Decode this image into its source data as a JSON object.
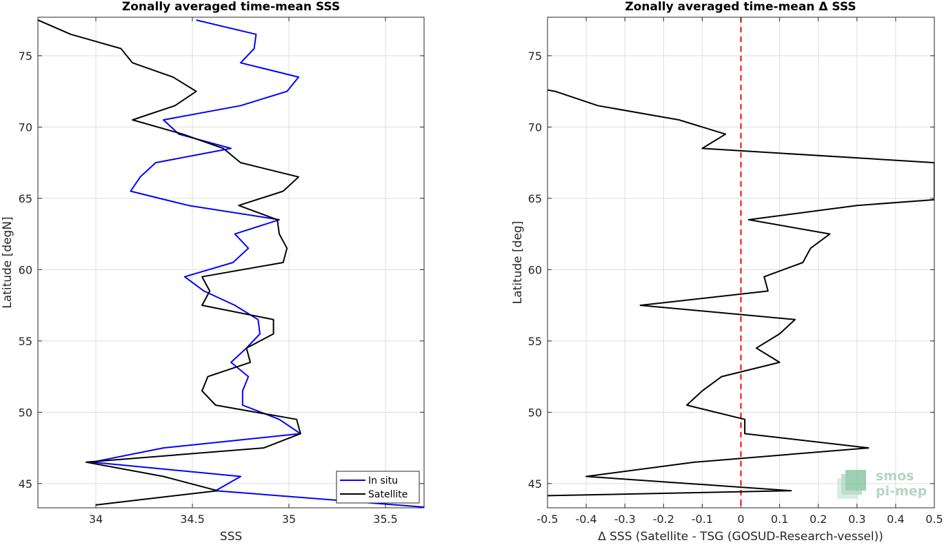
{
  "left_panel": {
    "title": "Zonally averaged time-mean SSS",
    "xlabel": "SSS",
    "ylabel": "Latitude [degN]"
  },
  "right_panel": {
    "title": "Zonally averaged time-mean Δ SSS",
    "xlabel": "Δ SSS (Satellite - TSG (GOSUD-Research-vessel))",
    "ylabel": "Latitude [deg]"
  },
  "legend": {
    "in_situ": "In situ",
    "satellite": "Satellite"
  },
  "logo": {
    "line1": "smos",
    "line2": "pi-mep"
  },
  "colors": {
    "in_situ": "#0000ff",
    "satellite": "#000000",
    "zero_line": "#ff0000",
    "grid": "#dedede",
    "logo": "#7fbf9a"
  },
  "chart_data": [
    {
      "type": "line",
      "title": "Zonally averaged time-mean SSS",
      "xlabel": "SSS",
      "ylabel": "Latitude [degN]",
      "xlim": [
        33.7,
        35.7
      ],
      "ylim": [
        43.3,
        77.7
      ],
      "xticks": [
        34,
        34.5,
        35,
        35.5
      ],
      "xtick_labels": [
        "34",
        "34.5",
        "35",
        "35.5"
      ],
      "yticks": [
        45,
        50,
        55,
        60,
        65,
        70,
        75
      ],
      "ytick_labels": [
        "45",
        "50",
        "55",
        "60",
        "65",
        "70",
        "75"
      ],
      "grid": true,
      "legend_position": "bottom-right",
      "series": [
        {
          "name": "In situ",
          "color": "#0000ff",
          "points": [
            [
              34.52,
              77.5
            ],
            [
              34.83,
              76.5
            ],
            [
              34.82,
              75.5
            ],
            [
              34.75,
              74.5
            ],
            [
              35.05,
              73.5
            ],
            [
              34.99,
              72.5
            ],
            [
              34.75,
              71.5
            ],
            [
              34.35,
              70.5
            ],
            [
              34.43,
              69.5
            ],
            [
              34.7,
              68.5
            ],
            [
              34.31,
              67.5
            ],
            [
              34.23,
              66.5
            ],
            [
              34.18,
              65.5
            ],
            [
              34.48,
              64.5
            ],
            [
              34.95,
              63.5
            ],
            [
              34.72,
              62.5
            ],
            [
              34.79,
              61.5
            ],
            [
              34.71,
              60.5
            ],
            [
              34.46,
              59.5
            ],
            [
              34.56,
              58.5
            ],
            [
              34.72,
              57.5
            ],
            [
              34.84,
              56.5
            ],
            [
              34.85,
              55.5
            ],
            [
              34.78,
              54.5
            ],
            [
              34.7,
              53.5
            ],
            [
              34.79,
              52.5
            ],
            [
              34.76,
              51.5
            ],
            [
              34.76,
              50.5
            ],
            [
              34.95,
              49.5
            ],
            [
              35.06,
              48.5
            ],
            [
              34.35,
              47.5
            ],
            [
              33.98,
              46.5
            ],
            [
              34.75,
              45.5
            ],
            [
              34.62,
              44.5
            ],
            [
              35.7,
              43.35
            ]
          ]
        },
        {
          "name": "Satellite",
          "color": "#000000",
          "points": [
            [
              33.7,
              77.5
            ],
            [
              33.87,
              76.5
            ],
            [
              34.13,
              75.5
            ],
            [
              34.19,
              74.5
            ],
            [
              34.4,
              73.5
            ],
            [
              34.52,
              72.5
            ],
            [
              34.41,
              71.5
            ],
            [
              34.19,
              70.5
            ],
            [
              34.45,
              69.5
            ],
            [
              34.66,
              68.5
            ],
            [
              34.75,
              67.5
            ],
            [
              35.05,
              66.5
            ],
            [
              34.97,
              65.5
            ],
            [
              34.74,
              64.5
            ],
            [
              34.94,
              63.5
            ],
            [
              34.95,
              62.5
            ],
            [
              34.99,
              61.5
            ],
            [
              34.97,
              60.5
            ],
            [
              34.55,
              59.5
            ],
            [
              34.59,
              58.5
            ],
            [
              34.55,
              57.5
            ],
            [
              34.92,
              56.5
            ],
            [
              34.92,
              55.5
            ],
            [
              34.78,
              54.5
            ],
            [
              34.8,
              53.5
            ],
            [
              34.58,
              52.5
            ],
            [
              34.55,
              51.5
            ],
            [
              34.62,
              50.5
            ],
            [
              35.04,
              49.5
            ],
            [
              35.06,
              48.5
            ],
            [
              34.87,
              47.5
            ],
            [
              33.95,
              46.5
            ],
            [
              34.35,
              45.5
            ],
            [
              34.63,
              44.5
            ],
            [
              34.0,
              43.5
            ]
          ]
        }
      ]
    },
    {
      "type": "line",
      "title": "Zonally averaged time-mean Δ SSS",
      "xlabel": "Δ SSS (Satellite - TSG (GOSUD-Research-vessel))",
      "ylabel": "Latitude [deg]",
      "xlim": [
        -0.5,
        0.5
      ],
      "ylim": [
        43.3,
        77.7
      ],
      "xticks": [
        -0.5,
        -0.4,
        -0.3,
        -0.2,
        -0.1,
        0,
        0.1,
        0.2,
        0.3,
        0.4,
        0.5
      ],
      "xtick_labels": [
        "-0.5",
        "-0.4",
        "-0.3",
        "-0.2",
        "-0.1",
        "0",
        "0.1",
        "0.2",
        "0.3",
        "0.4",
        "0.5"
      ],
      "yticks": [
        45,
        50,
        55,
        60,
        65,
        70,
        75
      ],
      "ytick_labels": [
        "45",
        "50",
        "55",
        "60",
        "65",
        "70",
        "75"
      ],
      "grid": true,
      "reference_line": {
        "x": 0,
        "style": "dashed",
        "color": "#ff0000"
      },
      "series": [
        {
          "color": "#000000",
          "points": [
            [
              -0.5,
              72.6
            ],
            [
              -0.48,
              72.5
            ],
            [
              -0.37,
              71.5
            ],
            [
              -0.16,
              70.5
            ],
            [
              -0.04,
              69.5
            ],
            [
              -0.1,
              68.5
            ],
            [
              0.5,
              67.5
            ],
            [
              0.5,
              64.9
            ],
            [
              0.3,
              64.5
            ],
            [
              0.02,
              63.5
            ],
            [
              0.23,
              62.5
            ],
            [
              0.18,
              61.5
            ],
            [
              0.16,
              60.5
            ],
            [
              0.06,
              59.5
            ],
            [
              0.07,
              58.5
            ],
            [
              -0.26,
              57.5
            ],
            [
              0.14,
              56.5
            ],
            [
              0.1,
              55.5
            ],
            [
              0.04,
              54.5
            ],
            [
              0.1,
              53.5
            ],
            [
              -0.05,
              52.5
            ],
            [
              -0.1,
              51.5
            ],
            [
              -0.14,
              50.5
            ],
            [
              0.01,
              49.5
            ],
            [
              0.01,
              48.5
            ],
            [
              0.33,
              47.5
            ],
            [
              -0.12,
              46.5
            ],
            [
              -0.4,
              45.5
            ],
            [
              0.13,
              44.5
            ],
            [
              -0.5,
              44.15
            ]
          ]
        }
      ]
    }
  ]
}
